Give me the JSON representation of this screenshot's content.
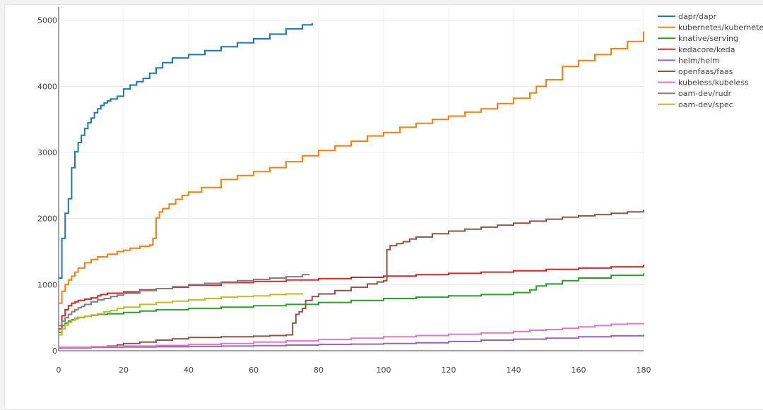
{
  "chart_data": {
    "type": "line",
    "line_shape": "step",
    "title": "",
    "xlabel": "",
    "ylabel": "",
    "xlim": [
      0,
      180
    ],
    "ylim": [
      0,
      5200
    ],
    "x_ticks": [
      0,
      20,
      40,
      60,
      80,
      100,
      120,
      140,
      160,
      180
    ],
    "y_ticks": [
      0,
      1000,
      2000,
      3000,
      4000,
      5000
    ],
    "grid": true,
    "legend_position": "top-right",
    "series": [
      {
        "name": "dapr/dapr",
        "color": "#1f77b4",
        "x": [
          0,
          1,
          2,
          3,
          4,
          5,
          6,
          7,
          8,
          9,
          10,
          11,
          12,
          13,
          14,
          15,
          16,
          18,
          20,
          22,
          24,
          26,
          28,
          30,
          32,
          35,
          40,
          45,
          50,
          55,
          60,
          65,
          70,
          75,
          78
        ],
        "y": [
          1100,
          1700,
          2080,
          2300,
          2770,
          3010,
          3150,
          3260,
          3360,
          3450,
          3520,
          3600,
          3660,
          3710,
          3750,
          3780,
          3810,
          3850,
          3960,
          4020,
          4070,
          4120,
          4200,
          4280,
          4360,
          4430,
          4480,
          4540,
          4600,
          4660,
          4720,
          4790,
          4870,
          4930,
          4960
        ]
      },
      {
        "name": "kubernetes/kubernetes",
        "color": "#ff7f0e",
        "x": [
          0,
          1,
          2,
          3,
          4,
          5,
          6,
          8,
          10,
          12,
          15,
          18,
          20,
          22,
          25,
          28,
          29,
          30,
          31,
          32,
          34,
          36,
          38,
          40,
          44,
          50,
          55,
          60,
          65,
          70,
          75,
          80,
          85,
          90,
          95,
          100,
          105,
          110,
          115,
          120,
          125,
          130,
          135,
          140,
          145,
          147,
          150,
          155,
          160,
          165,
          170,
          175,
          180
        ],
        "y": [
          720,
          900,
          1000,
          1070,
          1130,
          1190,
          1250,
          1330,
          1380,
          1420,
          1460,
          1500,
          1520,
          1550,
          1580,
          1600,
          1700,
          2010,
          2100,
          2150,
          2220,
          2290,
          2350,
          2400,
          2470,
          2590,
          2650,
          2710,
          2770,
          2860,
          2950,
          3030,
          3100,
          3170,
          3250,
          3300,
          3380,
          3440,
          3500,
          3550,
          3610,
          3660,
          3740,
          3820,
          3900,
          4000,
          4100,
          4300,
          4390,
          4480,
          4570,
          4680,
          4830
        ]
      },
      {
        "name": "knative/serving",
        "color": "#2ca02c",
        "x": [
          0,
          1,
          2,
          3,
          4,
          5,
          6,
          8,
          10,
          12,
          15,
          20,
          25,
          30,
          40,
          50,
          60,
          70,
          80,
          90,
          100,
          110,
          120,
          130,
          140,
          145,
          147,
          150,
          155,
          160,
          170,
          180
        ],
        "y": [
          280,
          380,
          420,
          450,
          470,
          490,
          505,
          520,
          535,
          550,
          560,
          580,
          600,
          620,
          640,
          660,
          680,
          700,
          730,
          760,
          790,
          810,
          830,
          850,
          880,
          920,
          980,
          1010,
          1060,
          1100,
          1140,
          1170
        ]
      },
      {
        "name": "kedacore/keda",
        "color": "#d62728",
        "x": [
          0,
          1,
          2,
          3,
          4,
          5,
          6,
          8,
          10,
          12,
          13,
          15,
          20,
          25,
          30,
          35,
          40,
          50,
          60,
          70,
          80,
          90,
          100,
          110,
          120,
          130,
          140,
          150,
          160,
          170,
          180
        ],
        "y": [
          330,
          530,
          620,
          680,
          720,
          740,
          760,
          780,
          800,
          830,
          850,
          870,
          890,
          920,
          940,
          960,
          990,
          1030,
          1050,
          1070,
          1090,
          1110,
          1130,
          1150,
          1170,
          1190,
          1210,
          1230,
          1250,
          1270,
          1300
        ]
      },
      {
        "name": "helm/helm",
        "color": "#9467bd",
        "x": [
          0,
          10,
          20,
          30,
          40,
          50,
          60,
          70,
          80,
          90,
          100,
          110,
          120,
          130,
          140,
          150,
          160,
          170,
          180
        ],
        "y": [
          40,
          50,
          55,
          60,
          65,
          70,
          78,
          85,
          95,
          100,
          110,
          120,
          140,
          160,
          175,
          190,
          210,
          225,
          240
        ]
      },
      {
        "name": "openfaas/faas",
        "color": "#8c564b",
        "x": [
          0,
          10,
          15,
          18,
          20,
          25,
          30,
          35,
          40,
          50,
          60,
          65,
          70,
          72,
          73,
          74,
          75,
          76,
          78,
          80,
          85,
          90,
          95,
          98,
          100,
          101,
          102,
          104,
          106,
          108,
          110,
          115,
          120,
          125,
          130,
          135,
          140,
          145,
          150,
          155,
          160,
          165,
          170,
          175,
          180
        ],
        "y": [
          50,
          60,
          70,
          90,
          110,
          130,
          160,
          180,
          200,
          210,
          220,
          230,
          240,
          420,
          550,
          590,
          640,
          760,
          820,
          860,
          910,
          960,
          1010,
          1040,
          1060,
          1530,
          1590,
          1620,
          1650,
          1690,
          1720,
          1770,
          1810,
          1840,
          1870,
          1900,
          1930,
          1960,
          1990,
          2020,
          2040,
          2060,
          2080,
          2100,
          2130
        ]
      },
      {
        "name": "kubeless/kubeless",
        "color": "#e377c2",
        "x": [
          0,
          10,
          20,
          30,
          40,
          50,
          60,
          70,
          80,
          90,
          100,
          110,
          120,
          130,
          140,
          145,
          150,
          155,
          160,
          165,
          170,
          175,
          180
        ],
        "y": [
          50,
          60,
          70,
          80,
          95,
          110,
          130,
          150,
          170,
          190,
          210,
          230,
          250,
          270,
          290,
          310,
          320,
          340,
          360,
          380,
          400,
          410,
          420
        ]
      },
      {
        "name": "oam-dev/rudr",
        "color": "#7f7f7f",
        "x": [
          0,
          1,
          2,
          3,
          4,
          5,
          6,
          7,
          8,
          10,
          12,
          14,
          16,
          18,
          20,
          25,
          30,
          35,
          40,
          45,
          50,
          55,
          60,
          65,
          70,
          75,
          77
        ],
        "y": [
          380,
          450,
          500,
          550,
          590,
          620,
          650,
          670,
          700,
          740,
          770,
          790,
          820,
          840,
          870,
          910,
          940,
          970,
          1000,
          1020,
          1040,
          1060,
          1080,
          1100,
          1120,
          1150,
          1160
        ]
      },
      {
        "name": "oam-dev/spec",
        "color": "#bcbd22",
        "x": [
          0,
          1,
          2,
          3,
          4,
          5,
          6,
          8,
          10,
          12,
          14,
          16,
          18,
          20,
          25,
          30,
          35,
          40,
          45,
          50,
          55,
          60,
          65,
          70,
          75
        ],
        "y": [
          240,
          330,
          390,
          430,
          460,
          480,
          500,
          520,
          540,
          560,
          590,
          610,
          640,
          660,
          700,
          730,
          750,
          770,
          790,
          810,
          820,
          830,
          850,
          860,
          870
        ]
      }
    ]
  }
}
